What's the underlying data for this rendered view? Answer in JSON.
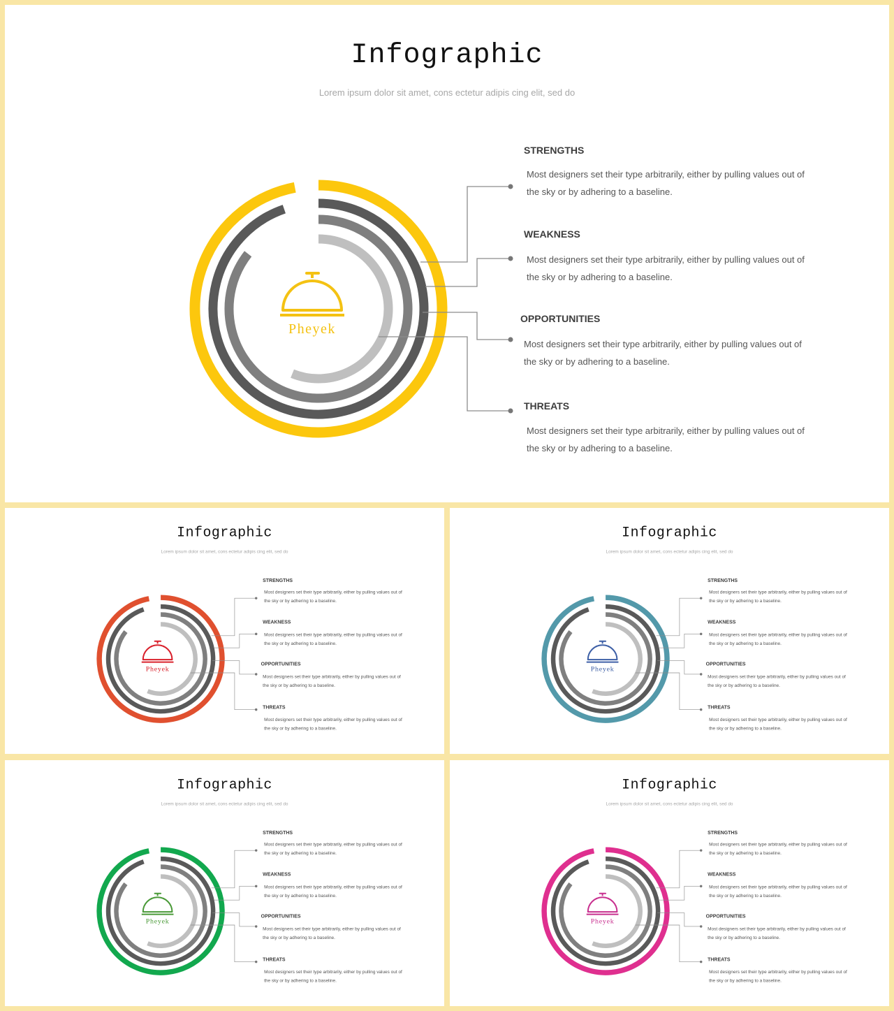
{
  "slides": [
    {
      "title": "Infographic",
      "subtitle": "Lorem ipsum dolor sit amet, cons ectetur adipis cing elit, sed do",
      "logo_text": "Pheyek",
      "accent": "#fcc70d",
      "logo_color": "#f4c213",
      "items": [
        {
          "heading": "STRENGTHS",
          "text": "Most designers set their type arbitrarily, either by pulling values out of the sky or by adhering to a baseline."
        },
        {
          "heading": "WEAKNESS",
          "text": "Most designers set their type arbitrarily, either by pulling values out of the sky or by adhering to a baseline."
        },
        {
          "heading": "OPPORTUNITIES",
          "text": "Most designers set their type arbitrarily, either by pulling values out of the sky or by adhering to a baseline."
        },
        {
          "heading": "THREATS",
          "text": "Most designers set their type arbitrarily, either by pulling values out of the sky or by adhering to a baseline."
        }
      ]
    },
    {
      "title": "Infographic",
      "subtitle": "Lorem ipsum dolor sit amet, cons ectetur adipis cing elit, sed do",
      "logo_text": "Pheyek",
      "accent": "#e0502f",
      "logo_color": "#d9202b",
      "items": [
        {
          "heading": "STRENGTHS",
          "text": "Most designers set their type arbitrarily, either by pulling values out of the sky or by adhering to a baseline."
        },
        {
          "heading": "WEAKNESS",
          "text": "Most designers set their type arbitrarily, either by pulling values out of the sky or by adhering to a baseline."
        },
        {
          "heading": "OPPORTUNITIES",
          "text": "Most designers set their type arbitrarily, either by pulling values out of the sky or by adhering to a baseline."
        },
        {
          "heading": "THREATS",
          "text": "Most designers set their type arbitrarily, either by pulling values out of the sky or by adhering to a baseline."
        }
      ]
    },
    {
      "title": "Infographic",
      "subtitle": "Lorem ipsum dolor sit amet, cons ectetur adipis cing elit, sed do",
      "logo_text": "Pheyek",
      "accent": "#5399aa",
      "logo_color": "#3d5fa6",
      "items": [
        {
          "heading": "STRENGTHS",
          "text": "Most designers set their type arbitrarily, either by pulling values out of the sky or by adhering to a baseline."
        },
        {
          "heading": "WEAKNESS",
          "text": "Most designers set their type arbitrarily, either by pulling values out of the sky or by adhering to a baseline."
        },
        {
          "heading": "OPPORTUNITIES",
          "text": "Most designers set their type arbitrarily, either by pulling values out of the sky or by adhering to a baseline."
        },
        {
          "heading": "THREATS",
          "text": "Most designers set their type arbitrarily, either by pulling values out of the sky or by adhering to a baseline."
        }
      ]
    },
    {
      "title": "Infographic",
      "subtitle": "Lorem ipsum dolor sit amet, cons ectetur adipis cing elit, sed do",
      "logo_text": "Pheyek",
      "accent": "#12a84e",
      "logo_color": "#4a9a38",
      "items": [
        {
          "heading": "STRENGTHS",
          "text": "Most designers set their type arbitrarily, either by pulling values out of the sky or by adhering to a baseline."
        },
        {
          "heading": "WEAKNESS",
          "text": "Most designers set their type arbitrarily, either by pulling values out of the sky or by adhering to a baseline."
        },
        {
          "heading": "OPPORTUNITIES",
          "text": "Most designers set their type arbitrarily, either by pulling values out of the sky or by adhering to a baseline."
        },
        {
          "heading": "THREATS",
          "text": "Most designers set their type arbitrarily, either by pulling values out of the sky or by adhering to a baseline."
        }
      ]
    },
    {
      "title": "Infographic",
      "subtitle": "Lorem ipsum dolor sit amet, cons ectetur adipis cing elit, sed do",
      "logo_text": "Pheyek",
      "accent": "#df2f8f",
      "logo_color": "#c8308f",
      "items": [
        {
          "heading": "STRENGTHS",
          "text": "Most designers set their type arbitrarily, either by pulling values out of the sky or by adhering to a baseline."
        },
        {
          "heading": "WEAKNESS",
          "text": "Most designers set their type arbitrarily, either by pulling values out of the sky or by adhering to a baseline."
        },
        {
          "heading": "OPPORTUNITIES",
          "text": "Most designers set their type arbitrarily, either by pulling values out of the sky or by adhering to a baseline."
        },
        {
          "heading": "THREATS",
          "text": "Most designers set their type arbitrarily, either by pulling values out of the sky or by adhering to a baseline."
        }
      ]
    }
  ],
  "ring_colors": {
    "dark": "#595959",
    "mid": "#7f7f7f",
    "light": "#bfbfbf",
    "connector": "#8c8c8c"
  }
}
